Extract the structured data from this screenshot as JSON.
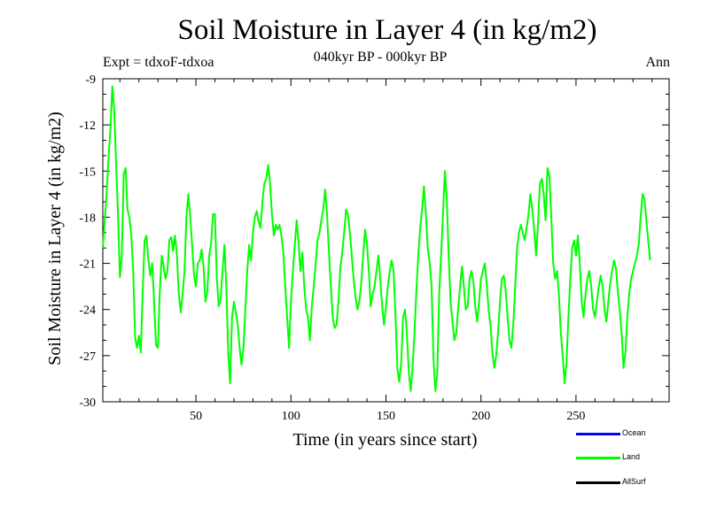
{
  "header": {
    "title": "Soil Moisture in Layer 4 (in kg/m2)",
    "subtitle": "040kyr BP - 000kyr BP",
    "expt": "Expt = tdxoF-tdxoa",
    "season": "Ann"
  },
  "colors": {
    "ocean": "#0000ff",
    "land": "#00ff00",
    "allsurf": "#000000"
  },
  "chart_data": {
    "type": "line",
    "xlabel": "Time (in years since start)",
    "ylabel": "Soil Moisture in Layer 4 (in kg/m2)",
    "xlim": [
      1,
      299
    ],
    "ylim": [
      -30,
      -9
    ],
    "xticks": [
      50,
      100,
      150,
      200,
      250
    ],
    "yticks": [
      -30,
      -27,
      -24,
      -21,
      -18,
      -15,
      -12,
      -9
    ],
    "grid": false,
    "legend_position": "bottom-right",
    "series": [
      {
        "name": "Ocean",
        "color": "#0000ff",
        "values": []
      },
      {
        "name": "Land",
        "color": "#00ff00",
        "values": [
          -20.0,
          -18.2,
          -16.5,
          -14.2,
          -12.3,
          -9.5,
          -11.0,
          -14.5,
          -17.8,
          -21.9,
          -20.5,
          -15.2,
          -14.8,
          -17.5,
          -18.0,
          -19.2,
          -21.5,
          -25.8,
          -26.5,
          -25.7,
          -26.8,
          -22.8,
          -19.5,
          -19.2,
          -20.8,
          -21.8,
          -21.0,
          -23.5,
          -26.3,
          -26.5,
          -22.8,
          -20.5,
          -21.2,
          -22.0,
          -21.5,
          -19.5,
          -19.3,
          -20.2,
          -19.2,
          -20.5,
          -23.0,
          -24.2,
          -23.0,
          -21.5,
          -18.0,
          -16.5,
          -18.0,
          -19.8,
          -21.8,
          -22.5,
          -21.0,
          -20.8,
          -20.1,
          -21.2,
          -23.5,
          -22.8,
          -20.5,
          -19.7,
          -17.8,
          -17.8,
          -22.0,
          -23.8,
          -23.3,
          -21.5,
          -19.8,
          -22.5,
          -26.8,
          -28.8,
          -24.5,
          -23.5,
          -24.2,
          -25.0,
          -26.5,
          -27.6,
          -26.5,
          -24.0,
          -21.5,
          -19.8,
          -20.8,
          -19.0,
          -18.0,
          -17.6,
          -18.3,
          -18.7,
          -17.0,
          -15.8,
          -15.5,
          -14.6,
          -15.8,
          -17.8,
          -19.2,
          -18.5,
          -18.8,
          -18.5,
          -19.2,
          -20.3,
          -22.5,
          -24.5,
          -26.5,
          -23.5,
          -21.5,
          -19.8,
          -18.2,
          -19.6,
          -21.5,
          -20.3,
          -22.5,
          -24.0,
          -24.5,
          -26.0,
          -23.8,
          -22.5,
          -21.0,
          -19.5,
          -19.0,
          -18.2,
          -17.5,
          -16.2,
          -17.8,
          -20.3,
          -22.5,
          -24.5,
          -25.2,
          -25.0,
          -23.5,
          -21.3,
          -20.3,
          -19.0,
          -17.5,
          -17.8,
          -19.0,
          -20.5,
          -22.0,
          -23.2,
          -24.0,
          -23.5,
          -22.3,
          -20.5,
          -18.8,
          -19.7,
          -21.5,
          -23.8,
          -23.0,
          -22.5,
          -21.5,
          -20.5,
          -22.0,
          -23.8,
          -25.0,
          -23.8,
          -22.5,
          -21.5,
          -20.8,
          -21.5,
          -24.3,
          -27.8,
          -28.7,
          -27.5,
          -24.5,
          -24.0,
          -25.5,
          -28.0,
          -29.3,
          -27.8,
          -25.5,
          -22.8,
          -20.5,
          -18.7,
          -17.5,
          -16.0,
          -17.8,
          -20.0,
          -21.0,
          -22.5,
          -27.2,
          -29.3,
          -28.2,
          -23.0,
          -20.5,
          -17.8,
          -15.0,
          -16.8,
          -20.5,
          -23.5,
          -24.8,
          -26.0,
          -25.5,
          -24.0,
          -22.5,
          -21.2,
          -22.5,
          -24.0,
          -23.8,
          -22.0,
          -21.5,
          -22.2,
          -23.8,
          -24.8,
          -23.5,
          -22.0,
          -21.5,
          -21.0,
          -22.3,
          -24.0,
          -25.0,
          -26.8,
          -27.8,
          -27.0,
          -25.5,
          -23.5,
          -22.0,
          -21.8,
          -22.8,
          -24.5,
          -26.0,
          -26.5,
          -25.0,
          -22.5,
          -20.0,
          -19.0,
          -18.5,
          -19.0,
          -19.5,
          -18.7,
          -17.8,
          -16.5,
          -17.5,
          -18.8,
          -20.5,
          -18.5,
          -15.8,
          -15.5,
          -16.5,
          -18.2,
          -14.8,
          -15.3,
          -18.0,
          -21.0,
          -22.0,
          -21.5,
          -23.0,
          -25.5,
          -27.0,
          -28.8,
          -27.5,
          -24.5,
          -22.0,
          -20.0,
          -19.5,
          -20.5,
          -19.2,
          -21.0,
          -23.5,
          -24.5,
          -23.0,
          -22.0,
          -21.5,
          -22.5,
          -24.0,
          -24.5,
          -23.5,
          -22.5,
          -21.8,
          -22.5,
          -24.0,
          -24.8,
          -23.5,
          -22.3,
          -21.5,
          -20.8,
          -21.3,
          -22.8,
          -24.0,
          -25.5,
          -27.8,
          -26.8,
          -24.5,
          -23.0,
          -22.0,
          -21.5,
          -21.0,
          -20.5,
          -19.8,
          -18.0,
          -16.5,
          -16.8,
          -18.2,
          -19.5,
          -20.8
        ]
      },
      {
        "name": "AllSurf",
        "color": "#000000",
        "values": []
      }
    ]
  }
}
